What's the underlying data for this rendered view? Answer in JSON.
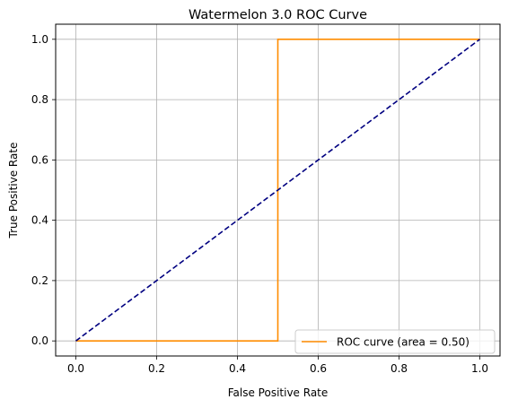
{
  "chart_data": {
    "type": "line",
    "title": "Watermelon 3.0 ROC Curve",
    "xlabel": "False Positive Rate",
    "ylabel": "True Positive Rate",
    "xlim": [
      -0.05,
      1.05
    ],
    "ylim": [
      -0.05,
      1.05
    ],
    "x_ticks": [
      "0.0",
      "0.2",
      "0.4",
      "0.6",
      "0.8",
      "1.0"
    ],
    "y_ticks": [
      "0.0",
      "0.2",
      "0.4",
      "0.6",
      "0.8",
      "1.0"
    ],
    "grid": true,
    "legend_position": "lower right",
    "series": [
      {
        "name": "ROC curve (area = 0.50)",
        "color": "#ff8c00",
        "style": "solid",
        "x": [
          0.0,
          0.5,
          0.5,
          1.0
        ],
        "y": [
          0.0,
          0.0,
          1.0,
          1.0
        ]
      },
      {
        "color": "#000080",
        "style": "dashed",
        "x": [
          0.0,
          1.0
        ],
        "y": [
          0.0,
          1.0
        ]
      }
    ]
  }
}
